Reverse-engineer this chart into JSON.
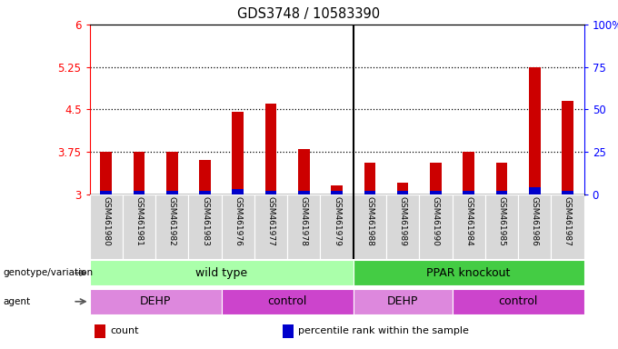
{
  "title": "GDS3748 / 10583390",
  "samples": [
    "GSM461980",
    "GSM461981",
    "GSM461982",
    "GSM461983",
    "GSM461976",
    "GSM461977",
    "GSM461978",
    "GSM461979",
    "GSM461988",
    "GSM461989",
    "GSM461990",
    "GSM461984",
    "GSM461985",
    "GSM461986",
    "GSM461987"
  ],
  "red_values": [
    3.75,
    3.75,
    3.75,
    3.6,
    4.45,
    4.6,
    3.8,
    3.15,
    3.55,
    3.2,
    3.55,
    3.75,
    3.55,
    5.25,
    4.65
  ],
  "blue_values": [
    2.0,
    2.0,
    2.0,
    2.0,
    3.0,
    2.0,
    2.0,
    2.0,
    2.0,
    2.0,
    2.0,
    2.0,
    2.0,
    4.0,
    2.0
  ],
  "ymin": 3.0,
  "ymax": 6.0,
  "yticks_left": [
    3.0,
    3.75,
    4.5,
    5.25,
    6.0
  ],
  "ytick_labels_left": [
    "3",
    "3.75",
    "4.5",
    "5.25",
    "6"
  ],
  "yticks_right_vals": [
    0,
    25,
    50,
    75,
    100
  ],
  "ytick_labels_right": [
    "0",
    "25",
    "50",
    "75",
    "100%"
  ],
  "dotted_lines": [
    3.75,
    4.5,
    5.25
  ],
  "bar_color_red": "#cc0000",
  "bar_color_blue": "#0000cc",
  "plot_bg": "#ffffff",
  "tick_area_bg": "#d8d8d8",
  "genotype_labels": [
    {
      "text": "wild type",
      "start": 0,
      "end": 7,
      "color": "#aaffaa"
    },
    {
      "text": "PPAR knockout",
      "start": 8,
      "end": 14,
      "color": "#44cc44"
    }
  ],
  "agent_labels": [
    {
      "text": "DEHP",
      "start": 0,
      "end": 3,
      "color": "#dd88dd"
    },
    {
      "text": "control",
      "start": 4,
      "end": 7,
      "color": "#cc44cc"
    },
    {
      "text": "DEHP",
      "start": 8,
      "end": 10,
      "color": "#dd88dd"
    },
    {
      "text": "control",
      "start": 11,
      "end": 14,
      "color": "#cc44cc"
    }
  ],
  "legend_items": [
    {
      "color": "#cc0000",
      "label": "count"
    },
    {
      "color": "#0000cc",
      "label": "percentile rank within the sample"
    }
  ],
  "group_separator": 7.5
}
